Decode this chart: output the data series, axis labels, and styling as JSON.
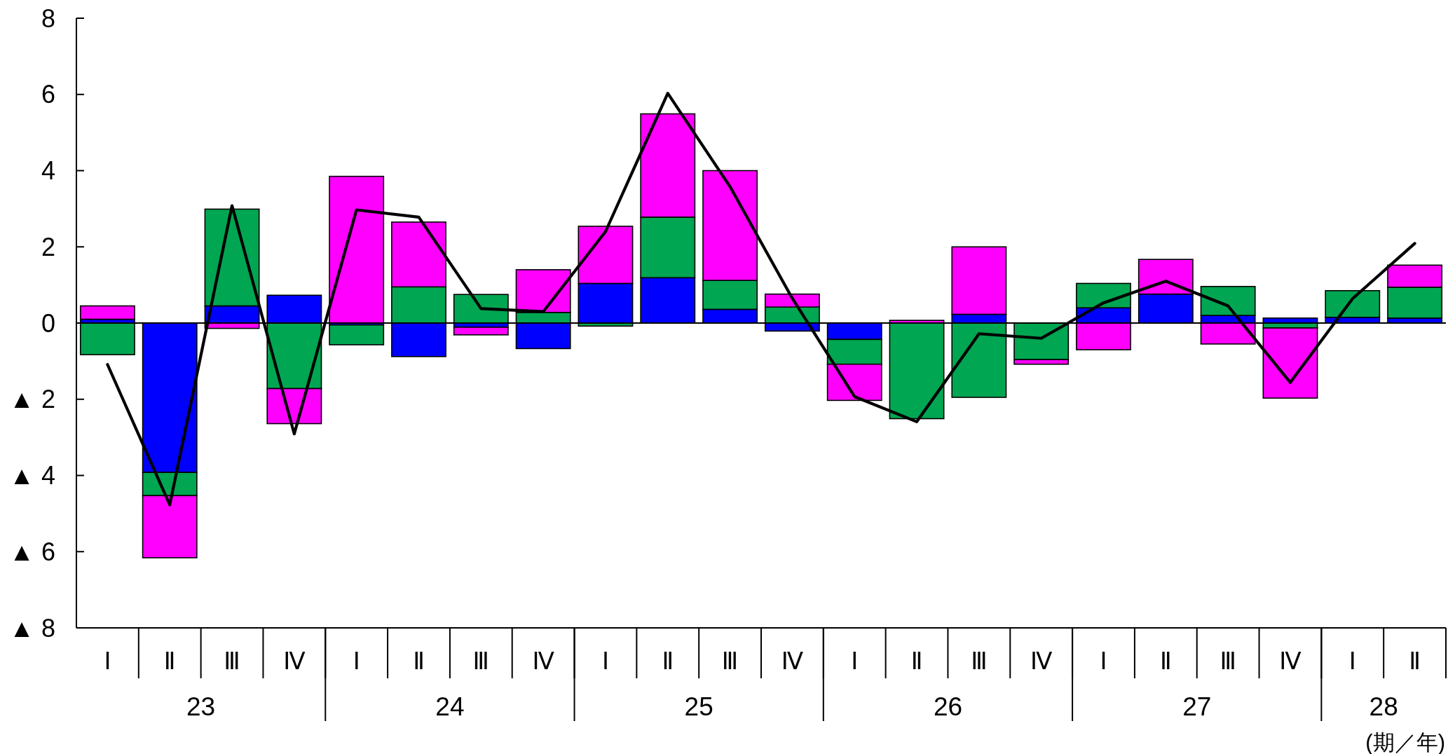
{
  "chart_data": {
    "type": "bar",
    "stacked": true,
    "categories": [
      "Ⅰ",
      "Ⅱ",
      "Ⅲ",
      "Ⅳ",
      "Ⅰ",
      "Ⅱ",
      "Ⅲ",
      "Ⅳ",
      "Ⅰ",
      "Ⅱ",
      "Ⅲ",
      "Ⅳ",
      "Ⅰ",
      "Ⅱ",
      "Ⅲ",
      "Ⅳ",
      "Ⅰ",
      "Ⅱ",
      "Ⅲ",
      "Ⅳ",
      "Ⅰ",
      "Ⅱ"
    ],
    "series": [
      {
        "color": "#0000ff",
        "values": [
          0.1,
          -3.92,
          0.45,
          0.73,
          -0.05,
          -0.88,
          -0.11,
          -0.67,
          1.04,
          1.19,
          0.36,
          -0.21,
          -0.43,
          null,
          0.23,
          null,
          0.4,
          0.76,
          0.2,
          0.13,
          0.15,
          0.13
        ]
      },
      {
        "color": "#00a651",
        "values": [
          -0.83,
          -0.61,
          2.54,
          -1.72,
          -0.52,
          0.95,
          0.75,
          0.28,
          -0.08,
          1.59,
          0.76,
          0.42,
          -0.65,
          -2.51,
          -1.95,
          -0.96,
          0.64,
          null,
          0.76,
          -0.13,
          0.7,
          0.81
        ]
      },
      {
        "color": "#ff00ff",
        "values": [
          0.35,
          -1.63,
          -0.14,
          -0.92,
          3.85,
          1.7,
          -0.2,
          1.12,
          1.5,
          2.71,
          2.88,
          0.34,
          -0.95,
          0.07,
          1.77,
          -0.12,
          -0.7,
          0.91,
          -0.55,
          -1.84,
          null,
          0.58
        ]
      },
      {
        "type": "line",
        "color": "#000000",
        "values": [
          -1.09,
          -4.77,
          3.08,
          -2.91,
          2.97,
          2.78,
          0.38,
          0.3,
          2.4,
          6.03,
          3.58,
          0.65,
          -1.93,
          -2.59,
          -0.28,
          -0.4,
          0.53,
          1.1,
          0.45,
          -1.56,
          0.64,
          2.09
        ]
      }
    ],
    "ylim": [
      -8,
      8
    ],
    "yticks": [
      {
        "value": -8,
        "label": "▲ 8"
      },
      {
        "value": -6,
        "label": "▲ 6"
      },
      {
        "value": -4,
        "label": "▲ 4"
      },
      {
        "value": -2,
        "label": "▲ 2"
      },
      0,
      2,
      4,
      6,
      8
    ],
    "xlabel": "(期／年)",
    "annotations": [
      "23",
      "24",
      "25",
      "26",
      "27",
      "28"
    ]
  }
}
